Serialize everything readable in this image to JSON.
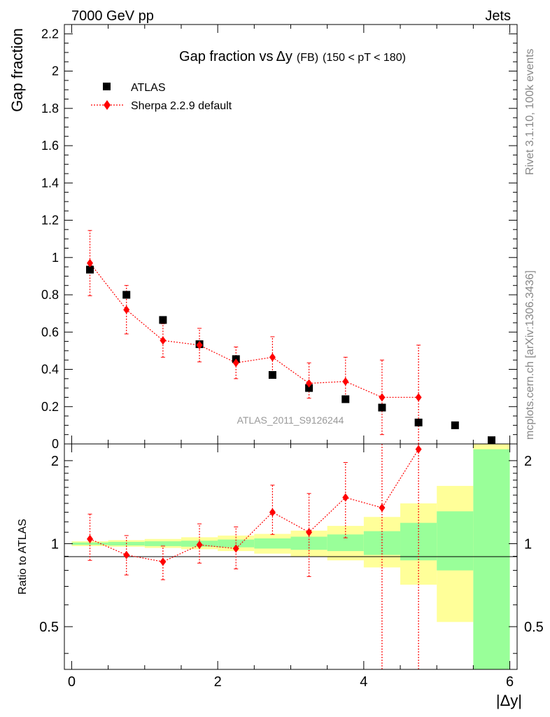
{
  "header": {
    "left": "7000 GeV pp",
    "right": "Jets"
  },
  "side_text": {
    "rivet": "Rivet 3.1.10,  100k events",
    "mcplots": "mcplots.cern.ch [arXiv:1306.3436]"
  },
  "colors": {
    "data": "#000000",
    "mc": "#ff0000",
    "band_inner": "#99ff99",
    "band_outer": "#ffff99"
  },
  "chart_data": [
    {
      "type": "scatter",
      "title_main": "Gap fraction vs",
      "title_delta": "Δy",
      "title_fb": "(FB)",
      "title_cut": "(150 < pT < 180)",
      "ylabel": "Gap fraction",
      "watermark": "ATLAS_2011_S9126244",
      "xlim": [
        -0.1,
        6.1
      ],
      "ylim": [
        0,
        2.25
      ],
      "yticks": [
        0,
        0.2,
        0.4,
        0.6,
        0.8,
        1,
        1.2,
        1.4,
        1.6,
        1.8,
        2,
        2.2
      ],
      "ytick_labels": [
        "0",
        "0.2",
        "0.4",
        "0.6",
        "0.8",
        "1",
        "1.2",
        "1.4",
        "1.6",
        "1.8",
        "2",
        "2.2"
      ],
      "legend_position": "top-left",
      "series": [
        {
          "name": "ATLAS",
          "marker": "square",
          "x": [
            0.25,
            0.75,
            1.25,
            1.75,
            2.25,
            2.75,
            3.25,
            3.75,
            4.25,
            4.75,
            5.25,
            5.75
          ],
          "y": [
            0.935,
            0.8,
            0.665,
            0.535,
            0.455,
            0.37,
            0.3,
            0.24,
            0.195,
            0.115,
            0.1,
            0.02
          ]
        },
        {
          "name": "Sherpa 2.2.9 default",
          "marker": "diamond",
          "x": [
            0.25,
            0.75,
            1.25,
            1.75,
            2.25,
            2.75,
            3.25,
            3.75,
            4.25,
            4.75
          ],
          "y": [
            0.97,
            0.72,
            0.555,
            0.53,
            0.435,
            0.465,
            0.325,
            0.335,
            0.25,
            0.25
          ],
          "err_lo": [
            0.175,
            0.13,
            0.09,
            0.09,
            0.085,
            0.085,
            0.08,
            0.1,
            0.2,
            0.25
          ],
          "err_hi": [
            0.175,
            0.13,
            0.09,
            0.09,
            0.085,
            0.11,
            0.11,
            0.13,
            0.2,
            0.28
          ]
        }
      ]
    },
    {
      "type": "scatter",
      "ylabel": "Ratio to ATLAS",
      "xlabel": "|Δy|",
      "xlim": [
        -0.1,
        6.1
      ],
      "ylim": [
        0.35,
        2.3
      ],
      "log_y": true,
      "xticks": [
        0,
        2,
        4,
        6
      ],
      "xtick_labels": [
        "0",
        "2",
        "4",
        "6"
      ],
      "yticks": [
        0.5,
        1,
        2
      ],
      "ytick_labels": [
        "0.5",
        "1",
        "2"
      ],
      "bands": {
        "x_low": [
          0,
          0.5,
          1,
          1.5,
          2,
          2.5,
          3,
          3.5,
          4,
          4.5,
          5,
          5.5
        ],
        "x_high": [
          0.5,
          1,
          1.5,
          2,
          2.5,
          3,
          3.5,
          4,
          4.5,
          5,
          5.5,
          6
        ],
        "inner_lo": [
          0.99,
          0.985,
          0.98,
          0.975,
          0.97,
          0.96,
          0.95,
          0.94,
          0.91,
          0.87,
          0.8,
          0.35
        ],
        "inner_hi": [
          1.01,
          1.015,
          1.02,
          1.025,
          1.035,
          1.045,
          1.06,
          1.08,
          1.11,
          1.19,
          1.31,
          2.2
        ],
        "outer_lo": [
          0.98,
          0.975,
          0.965,
          0.955,
          0.94,
          0.92,
          0.9,
          0.87,
          0.82,
          0.71,
          0.52,
          0.35
        ],
        "outer_hi": [
          1.02,
          1.03,
          1.04,
          1.055,
          1.07,
          1.085,
          1.115,
          1.16,
          1.25,
          1.4,
          1.62,
          2.3
        ]
      },
      "series": [
        {
          "name": "Sherpa 2.2.9 default",
          "marker": "diamond",
          "x": [
            0.25,
            0.75,
            1.25,
            1.75,
            2.25,
            2.75,
            3.25,
            3.75,
            4.25,
            4.75
          ],
          "y": [
            1.04,
            0.91,
            0.86,
            0.99,
            0.96,
            1.3,
            1.1,
            1.47,
            1.35,
            2.2
          ],
          "err_lo": [
            0.17,
            0.14,
            0.12,
            0.14,
            0.15,
            0.22,
            0.34,
            0.42,
            1.05,
            1.9
          ],
          "err_hi": [
            0.24,
            0.16,
            0.12,
            0.19,
            0.19,
            0.33,
            0.42,
            0.5,
            0.95,
            0.9
          ]
        }
      ]
    }
  ]
}
